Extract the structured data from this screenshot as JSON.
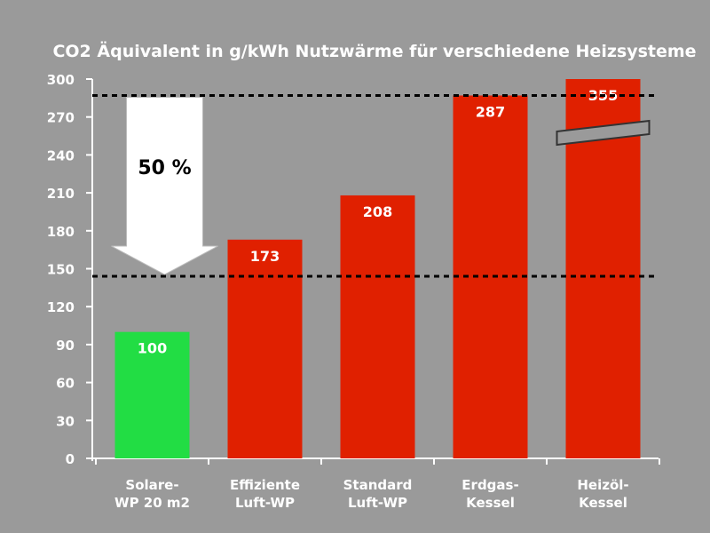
{
  "chart_data": {
    "type": "bar",
    "title": "CO2 Äquivalent in g/kWh Nutzwärme für verschiedene Heizsysteme",
    "xlabel": "",
    "ylabel": "",
    "ylim": [
      0,
      300
    ],
    "yticks": [
      0,
      30,
      60,
      90,
      120,
      150,
      180,
      210,
      240,
      270,
      300
    ],
    "categories": [
      [
        "Solare-",
        "WP 20 m2"
      ],
      [
        "Effiziente",
        "Luft-WP"
      ],
      [
        "Standard",
        "Luft-WP"
      ],
      [
        "Erdgas-",
        "Kessel"
      ],
      [
        "Heizöl-",
        "Kessel"
      ]
    ],
    "values": [
      100,
      173,
      208,
      287,
      355
    ],
    "value_labels": [
      "100",
      "173",
      "208",
      "287",
      "355"
    ],
    "bar_colors": [
      "#22dd44",
      "#e02000",
      "#e02000",
      "#e02000",
      "#e02000"
    ],
    "axis_break_on_last_bar": true,
    "reference_lines": [
      287,
      144
    ],
    "arrow_annotation": {
      "label": "50 %",
      "from": 287,
      "to": 144
    },
    "grid": false,
    "legend": "none"
  }
}
